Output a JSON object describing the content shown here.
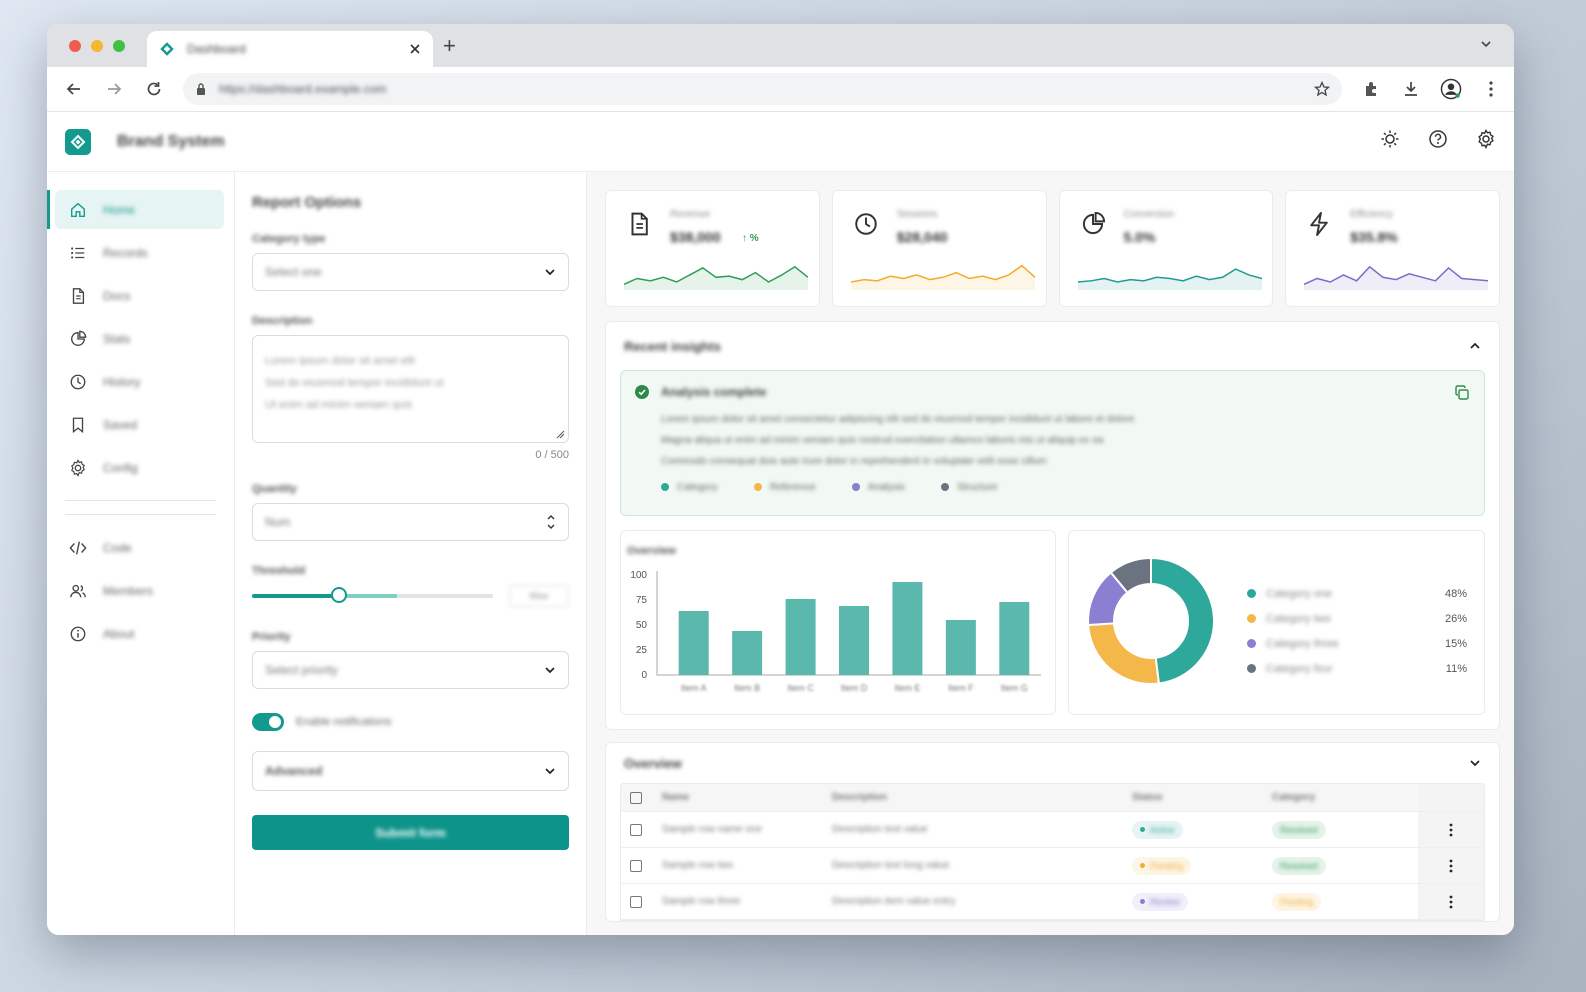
{
  "browser": {
    "tab_title": "Dashboard",
    "address": "https://dashboard.example.com",
    "colors": {
      "close": "#ee5d52",
      "min": "#f5b731",
      "max": "#3fc042"
    }
  },
  "app": {
    "brand": "Brand System",
    "header_icons": [
      "sun-icon",
      "help-icon",
      "settings-icon"
    ]
  },
  "sidebar": {
    "items": [
      {
        "label": "Home",
        "icon": "home-icon",
        "active": true
      },
      {
        "label": "Records",
        "icon": "list-icon"
      },
      {
        "label": "Docs",
        "icon": "document-icon"
      },
      {
        "label": "Stats",
        "icon": "pie-icon"
      },
      {
        "label": "History",
        "icon": "clock-icon"
      },
      {
        "label": "Saved",
        "icon": "bookmark-icon"
      },
      {
        "label": "Config",
        "icon": "gear-icon"
      }
    ],
    "items2": [
      {
        "label": "Code",
        "icon": "code-icon"
      },
      {
        "label": "Members",
        "icon": "users-icon"
      },
      {
        "label": "About",
        "icon": "info-icon"
      }
    ]
  },
  "form": {
    "title": "Report Options",
    "field1_label": "Category type",
    "field1_value": "Select one",
    "field2_label": "Description",
    "field2_lines": [
      "Lorem ipsum dolor sit amet elit",
      "Sed do eiusmod tempor incididunt ut",
      "Ut enim ad minim veniam quis"
    ],
    "counter": "0 / 500",
    "field3_label": "Quantity",
    "field3_value": "Num",
    "field4_label": "Threshold",
    "range_value": 0.36,
    "range_box": "Max",
    "field5_label": "Priority",
    "field5_value": "Select priority",
    "toggle_label": "Enable notifications",
    "select6_value": "Advanced",
    "submit": "Submit form"
  },
  "kpis": [
    {
      "label": "Revenue",
      "value": "$38,000",
      "delta": "↑ %",
      "icon": "document-icon",
      "color": "#2f9e58"
    },
    {
      "label": "Sessions",
      "value": "$28,040",
      "icon": "clock-icon",
      "color": "#f2ab2b"
    },
    {
      "label": "Conversion",
      "value": "5.0%",
      "icon": "pie-icon",
      "color": "#1f9c8f"
    },
    {
      "label": "Efficiency",
      "value": "$35.8%",
      "icon": "bolt-icon",
      "color": "#7b6bc8"
    }
  ],
  "summary": {
    "title": "Recent insights",
    "alert_title": "Analysis complete",
    "alert_lines": [
      "Lorem ipsum dolor sit amet consectetur adipiscing elit sed do eiusmod tempor incididunt ut labore et dolore",
      "Magna aliqua ut enim ad minim veniam quis nostrud exercitation ullamco laboris nisi ut aliquip ex ea",
      "Commodo consequat duis aute irure dolor in reprehenderit in voluptate velit esse cillum"
    ],
    "legend": [
      {
        "label": "Category",
        "color": "#2fa89c"
      },
      {
        "label": "Reference",
        "color": "#f4b84a"
      },
      {
        "label": "Analysis",
        "color": "#8a7fd0"
      },
      {
        "label": "Structure",
        "color": "#6b7280"
      }
    ]
  },
  "chart_data": [
    {
      "type": "bar",
      "title": "Overview",
      "categories": [
        "Item A",
        "Item B",
        "Item C",
        "Item D",
        "Item E",
        "Item F",
        "Item G"
      ],
      "values": [
        64,
        44,
        76,
        69,
        93,
        55,
        73
      ],
      "ylim": [
        0,
        100
      ],
      "yticks": [
        "0",
        "25",
        "50",
        "75",
        "100"
      ],
      "color": "#5bb8ad"
    },
    {
      "type": "pie",
      "labels": [
        "Category one",
        "Category two",
        "Category three",
        "Category four"
      ],
      "values": [
        48,
        26,
        15,
        11
      ],
      "value_labels": [
        "48%",
        "26%",
        "15%",
        "11%"
      ],
      "colors": [
        "#2fa89c",
        "#f4b84a",
        "#8a7fd0",
        "#6b7280"
      ]
    }
  ],
  "table": {
    "title": "Overview",
    "headers": [
      "Name",
      "Description",
      "Status",
      "Category"
    ],
    "rows": [
      {
        "name": "Sample row name one",
        "desc": "Description text value",
        "status": "Active",
        "status_color": "#2fa89c",
        "cat": "Resolved",
        "cat_color": "#2f9e58"
      },
      {
        "name": "Sample row two",
        "desc": "Description text long value",
        "status": "Pending",
        "status_color": "#f2ab2b",
        "cat": "Resolved",
        "cat_color": "#2f9e58"
      },
      {
        "name": "Sample row three",
        "desc": "Description item value entry",
        "status": "Review",
        "status_color": "#8a7fd0",
        "cat": "Pending",
        "cat_color": "#f2ab2b"
      }
    ]
  }
}
